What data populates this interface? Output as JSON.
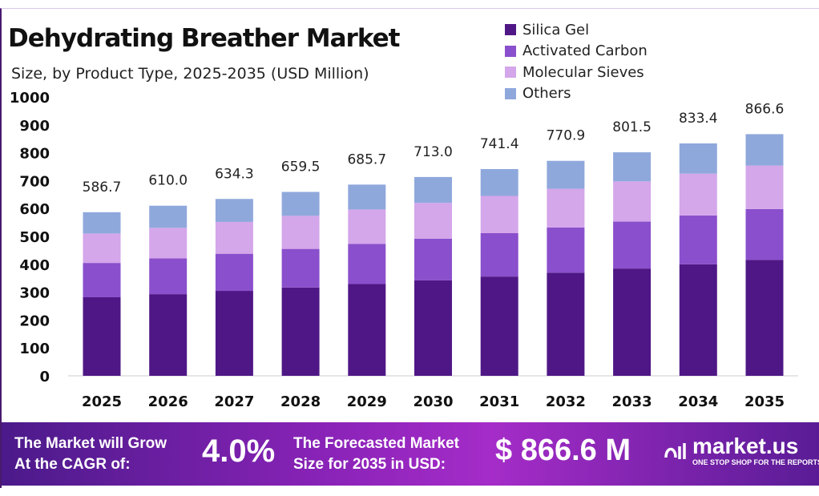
{
  "chart_data": {
    "type": "bar",
    "stacked": true,
    "title": "Dehydrating Breather Market",
    "subtitle": "Size, by Product Type, 2025-2035 (USD Million)",
    "categories": [
      "2025",
      "2026",
      "2027",
      "2028",
      "2029",
      "2030",
      "2031",
      "2032",
      "2033",
      "2034",
      "2035"
    ],
    "totals": [
      "586.7",
      "610.0",
      "634.3",
      "659.5",
      "685.7",
      "713.0",
      "741.4",
      "770.9",
      "801.5",
      "833.4",
      "866.6"
    ],
    "series": [
      {
        "name": "Silica Gel",
        "color": "#4f1786",
        "values": [
          281.6,
          292.8,
          304.5,
          316.6,
          329.1,
          342.2,
          355.9,
          370.0,
          384.7,
          400.0,
          416.0
        ]
      },
      {
        "name": "Activated Carbon",
        "color": "#8a4fcc",
        "values": [
          123.2,
          128.1,
          133.2,
          138.5,
          144.0,
          149.7,
          155.7,
          161.9,
          168.3,
          175.0,
          182.0
        ]
      },
      {
        "name": "Molecular Sieves",
        "color": "#d4a6ea",
        "values": [
          105.6,
          109.8,
          114.2,
          118.7,
          123.4,
          128.3,
          133.5,
          138.8,
          144.3,
          150.0,
          156.0
        ]
      },
      {
        "name": "Others",
        "color": "#8fa8dc",
        "values": [
          76.3,
          79.3,
          82.4,
          85.7,
          89.2,
          92.8,
          96.3,
          100.2,
          104.2,
          108.4,
          112.6
        ]
      }
    ],
    "yticks": [
      "0",
      "100",
      "200",
      "300",
      "400",
      "500",
      "600",
      "700",
      "800",
      "900",
      "1000"
    ],
    "ylim": [
      0,
      1000
    ],
    "grid": false,
    "legend": "top-right"
  },
  "footer": {
    "cagr_label_1": "The Market will Grow",
    "cagr_label_2": "At the CAGR of:",
    "cagr_value": "4.0%",
    "forecast_label_1": "The Forecasted Market",
    "forecast_label_2": "Size for 2035 in USD:",
    "forecast_value": "$ 866.6 M",
    "logo_text": "market.us",
    "logo_tagline": "ONE STOP SHOP FOR THE REPORTS"
  }
}
